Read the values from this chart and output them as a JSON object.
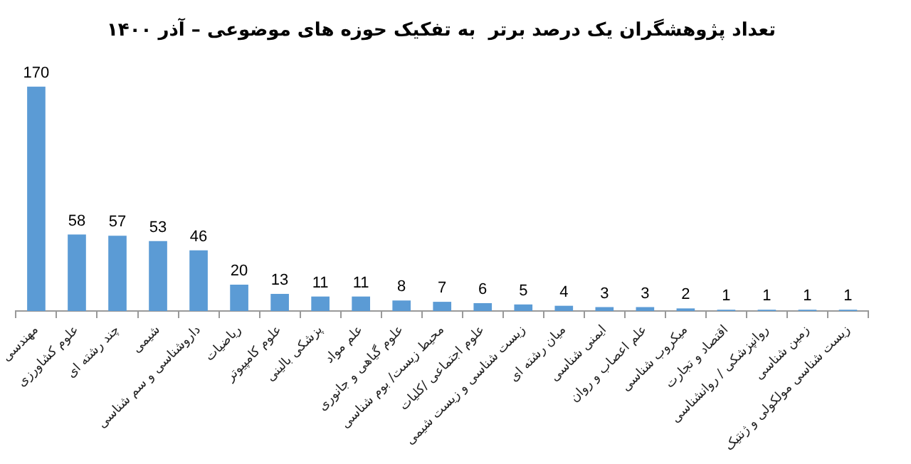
{
  "chart_data": {
    "type": "bar",
    "title": "تعداد پژوهشگران یک درصد برتر  به تفکیک حوزه های موضوعی – آذر ۱۴۰۰",
    "categories": [
      "مهندسی",
      "علوم کشاورزی",
      "چند رشته ای",
      "شیمی",
      "داروشناسی و سم شناسی",
      "ریاضیات",
      "علوم کامپیوتر",
      "پزشکی بالینی",
      "علم مواد",
      "علوم گیاهی و جانوری",
      "محیط زیست/ بوم شناسی",
      "علوم اجتماعی /کلیات",
      "زیست شناسی و زیست شیمی",
      "میان رشته ای",
      "ایمنی شناسی",
      "علم اعصاب و روان",
      "میکروب شناسی",
      "اقتصاد و تجارت",
      "روانپزشکی / روانشناسی",
      "زمین شناسی",
      "زیست شناسی مولکولی و ژنتیک"
    ],
    "values": [
      170,
      58,
      57,
      53,
      46,
      20,
      13,
      11,
      11,
      8,
      7,
      6,
      5,
      4,
      3,
      3,
      2,
      1,
      1,
      1,
      1
    ],
    "color": "#5b9bd5",
    "data_labels": true,
    "grid": false,
    "legend": false
  }
}
